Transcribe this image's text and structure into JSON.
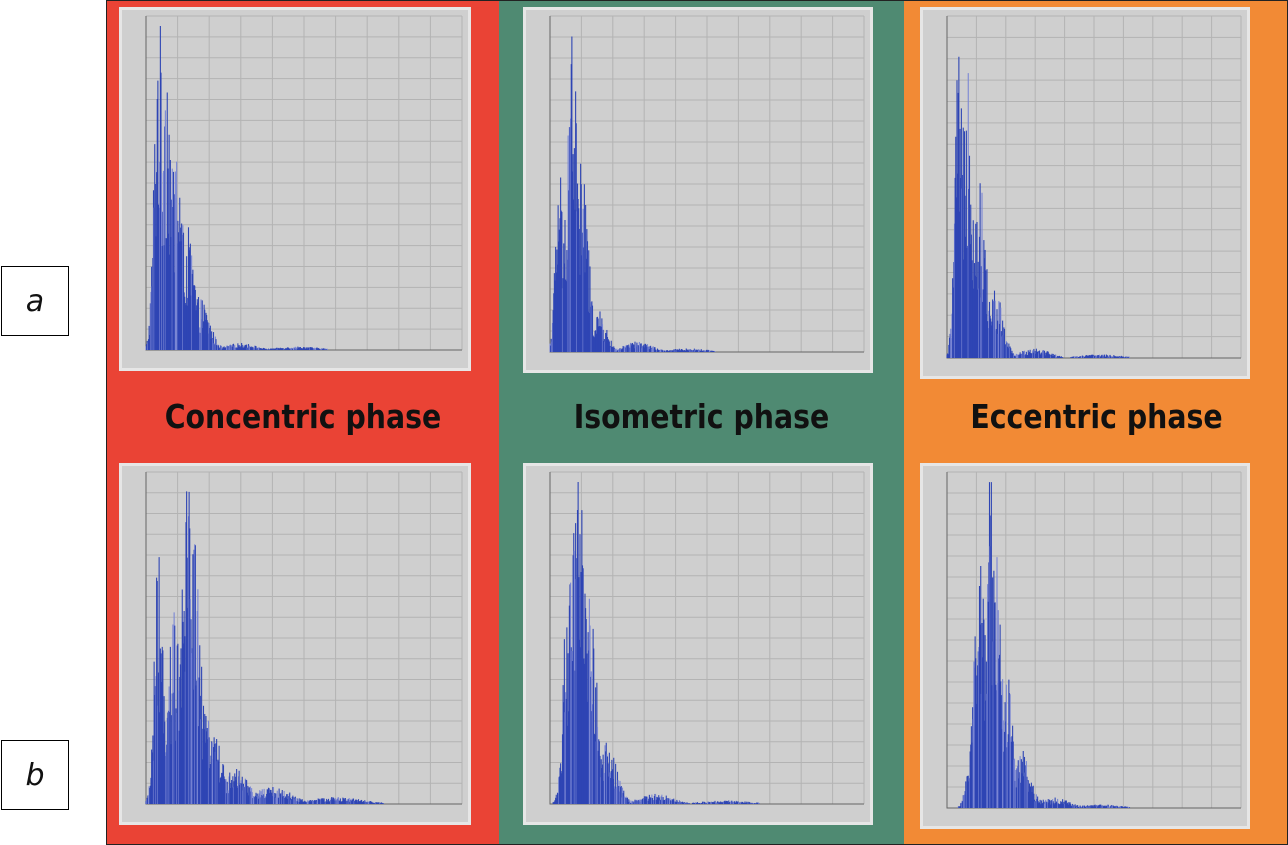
{
  "row_labels": {
    "a": "a",
    "b": "b"
  },
  "phases": [
    {
      "id": "concentric",
      "label": "Concentric phase",
      "color": "#ea4335"
    },
    {
      "id": "isometric",
      "label": "Isometric phase",
      "color": "#4f8a72"
    },
    {
      "id": "eccentric",
      "label": "Eccentric phase",
      "color": "#f28a35"
    }
  ],
  "chart_style": {
    "bar_color": "#2e45b4",
    "spike_color": "#7a86d4",
    "plot_bg": "#cfcfcf",
    "grid_color": "#b3b3b3",
    "grid": true
  },
  "chart_data": [
    {
      "panel": "a-concentric",
      "type": "bar",
      "xlim": [
        0,
        500
      ],
      "ylim": [
        0,
        1
      ],
      "peaks": [
        {
          "x": 20,
          "y": 1.0
        },
        {
          "x": 32,
          "y": 0.93
        },
        {
          "x": 48,
          "y": 0.62
        },
        {
          "x": 65,
          "y": 0.35
        },
        {
          "x": 85,
          "y": 0.15
        },
        {
          "x": 150,
          "y": 0.02
        },
        {
          "x": 240,
          "y": 0.01
        }
      ]
    },
    {
      "panel": "a-isometric",
      "type": "bar",
      "xlim": [
        0,
        500
      ],
      "ylim": [
        0,
        1
      ],
      "peaks": [
        {
          "x": 15,
          "y": 0.55
        },
        {
          "x": 35,
          "y": 1.0
        },
        {
          "x": 50,
          "y": 0.55
        },
        {
          "x": 75,
          "y": 0.12
        },
        {
          "x": 140,
          "y": 0.03
        },
        {
          "x": 220,
          "y": 0.01
        }
      ]
    },
    {
      "panel": "a-eccentric",
      "type": "bar",
      "xlim": [
        0,
        500
      ],
      "ylim": [
        0,
        1
      ],
      "peaks": [
        {
          "x": 20,
          "y": 0.85
        },
        {
          "x": 35,
          "y": 0.95
        },
        {
          "x": 55,
          "y": 0.5
        },
        {
          "x": 80,
          "y": 0.2
        },
        {
          "x": 150,
          "y": 0.03
        },
        {
          "x": 260,
          "y": 0.01
        }
      ]
    },
    {
      "panel": "b-concentric",
      "type": "bar",
      "xlim": [
        0,
        500
      ],
      "ylim": [
        0,
        1
      ],
      "peaks": [
        {
          "x": 20,
          "y": 0.72
        },
        {
          "x": 45,
          "y": 0.55
        },
        {
          "x": 70,
          "y": 1.0
        },
        {
          "x": 100,
          "y": 0.28
        },
        {
          "x": 140,
          "y": 0.1
        },
        {
          "x": 200,
          "y": 0.05
        },
        {
          "x": 300,
          "y": 0.02
        }
      ]
    },
    {
      "panel": "b-isometric",
      "type": "bar",
      "xlim": [
        0,
        500
      ],
      "ylim": [
        0,
        1
      ],
      "peaks": [
        {
          "x": 30,
          "y": 0.7
        },
        {
          "x": 45,
          "y": 1.0
        },
        {
          "x": 60,
          "y": 0.75
        },
        {
          "x": 90,
          "y": 0.18
        },
        {
          "x": 170,
          "y": 0.03
        },
        {
          "x": 280,
          "y": 0.01
        }
      ]
    },
    {
      "panel": "b-eccentric",
      "type": "bar",
      "xlim": [
        0,
        500
      ],
      "ylim": [
        0,
        1
      ],
      "peaks": [
        {
          "x": 55,
          "y": 0.7
        },
        {
          "x": 75,
          "y": 1.0
        },
        {
          "x": 95,
          "y": 0.45
        },
        {
          "x": 120,
          "y": 0.18
        },
        {
          "x": 180,
          "y": 0.03
        },
        {
          "x": 260,
          "y": 0.01
        }
      ]
    }
  ]
}
